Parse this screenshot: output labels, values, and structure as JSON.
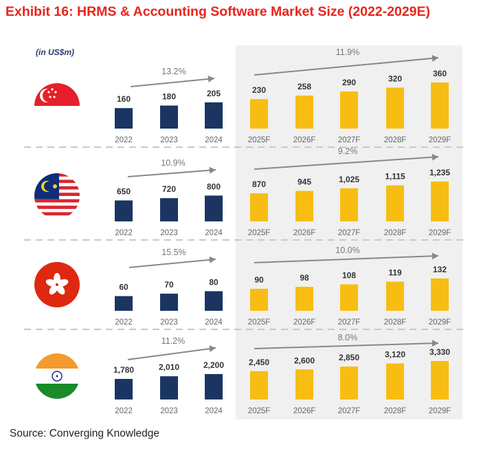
{
  "title": "Exhibit 16: HRMS & Accounting Software Market Size (2022-2029E)",
  "unit_label": "(in US$m)",
  "source": "Source: Converging Knowledge",
  "colors": {
    "historical": "#1b3563",
    "forecast": "#f7bd12",
    "forecast_panel": "#f0f0f0",
    "title": "#e8251c",
    "arrow": "#888888"
  },
  "chart_data": [
    {
      "type": "bar",
      "country": "Singapore",
      "flag_icon": "singapore-flag-icon",
      "categories": [
        "2022",
        "2023",
        "2024",
        "2025F",
        "2026F",
        "2027F",
        "2028F",
        "2029F"
      ],
      "values": [
        160,
        180,
        205,
        230,
        258,
        290,
        320,
        360
      ],
      "labels": [
        "160",
        "180",
        "205",
        "230",
        "258",
        "290",
        "320",
        "360"
      ],
      "cagr_historical": "13.2%",
      "cagr_forecast": "11.9%"
    },
    {
      "type": "bar",
      "country": "Malaysia",
      "flag_icon": "malaysia-flag-icon",
      "categories": [
        "2022",
        "2023",
        "2024",
        "2025F",
        "2026F",
        "2027F",
        "2028F",
        "2029F"
      ],
      "values": [
        650,
        720,
        800,
        870,
        945,
        1025,
        1115,
        1235
      ],
      "labels": [
        "650",
        "720",
        "800",
        "870",
        "945",
        "1,025",
        "1,115",
        "1,235"
      ],
      "cagr_historical": "10.9%",
      "cagr_forecast": "9.2%"
    },
    {
      "type": "bar",
      "country": "Hong Kong",
      "flag_icon": "hong-kong-flag-icon",
      "categories": [
        "2022",
        "2023",
        "2024",
        "2025F",
        "2026F",
        "2027F",
        "2028F",
        "2029F"
      ],
      "values": [
        60,
        70,
        80,
        90,
        98,
        108,
        119,
        132
      ],
      "labels": [
        "60",
        "70",
        "80",
        "90",
        "98",
        "108",
        "119",
        "132"
      ],
      "cagr_historical": "15.5%",
      "cagr_forecast": "10.0%"
    },
    {
      "type": "bar",
      "country": "India",
      "flag_icon": "india-flag-icon",
      "categories": [
        "2022",
        "2023",
        "2024",
        "2025F",
        "2026F",
        "2027F",
        "2028F",
        "2029F"
      ],
      "values": [
        1780,
        2010,
        2200,
        2450,
        2600,
        2850,
        3120,
        3330
      ],
      "labels": [
        "1,780",
        "2,010",
        "2,200",
        "2,450",
        "2,600",
        "2,850",
        "3,120",
        "3,330"
      ],
      "cagr_historical": "11.2%",
      "cagr_forecast": "8.0%"
    }
  ]
}
